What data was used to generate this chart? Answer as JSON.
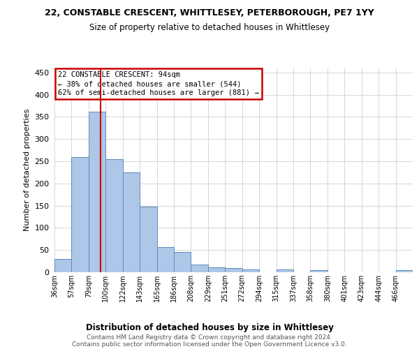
{
  "title_line1": "22, CONSTABLE CRESCENT, WHITTLESEY, PETERBOROUGH, PE7 1YY",
  "title_line2": "Size of property relative to detached houses in Whittlesey",
  "xlabel": "Distribution of detached houses by size in Whittlesey",
  "ylabel": "Number of detached properties",
  "categories": [
    "36sqm",
    "57sqm",
    "79sqm",
    "100sqm",
    "122sqm",
    "143sqm",
    "165sqm",
    "186sqm",
    "208sqm",
    "229sqm",
    "251sqm",
    "272sqm",
    "294sqm",
    "315sqm",
    "337sqm",
    "358sqm",
    "380sqm",
    "401sqm",
    "423sqm",
    "444sqm",
    "466sqm"
  ],
  "values": [
    30,
    260,
    362,
    255,
    225,
    148,
    57,
    45,
    18,
    11,
    10,
    7,
    0,
    6,
    0,
    4,
    0,
    0,
    0,
    0,
    4
  ],
  "bar_color": "#aec6e8",
  "bar_edge_color": "#5b8db8",
  "line_color": "#cc0000",
  "annotation_box_edge_color": "#cc0000",
  "annotation_box_face_color": "#ffffff",
  "annotation_line1": "22 CONSTABLE CRESCENT: 94sqm",
  "annotation_line2": "← 38% of detached houses are smaller (544)",
  "annotation_line3": "62% of semi-detached houses are larger (881) →",
  "ylim": [
    0,
    460
  ],
  "yticks": [
    0,
    50,
    100,
    150,
    200,
    250,
    300,
    350,
    400,
    450
  ],
  "grid_color": "#d0d0d0",
  "background_color": "#ffffff",
  "footer_line1": "Contains HM Land Registry data © Crown copyright and database right 2024.",
  "footer_line2": "Contains public sector information licensed under the Open Government Licence v3.0.",
  "property_sqm": 94,
  "bin_start_sqm": [
    36,
    57,
    79,
    100,
    122,
    143,
    165,
    186,
    208,
    229,
    251,
    272,
    294,
    315,
    337,
    358,
    380,
    401,
    423,
    444,
    466
  ]
}
